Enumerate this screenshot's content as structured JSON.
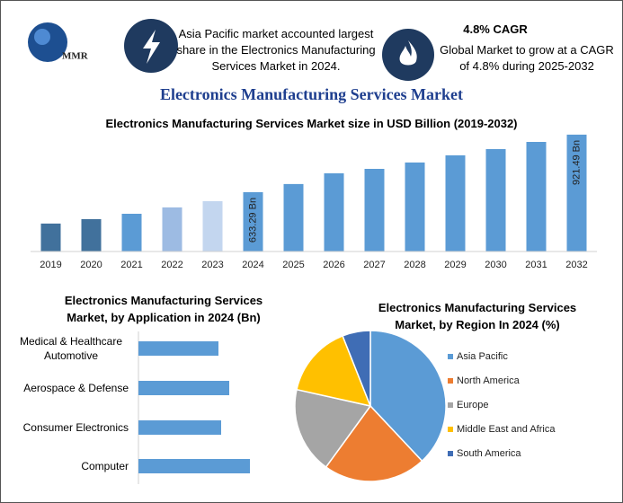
{
  "header": {
    "logo": "MMR",
    "fact1": "Asia Pacific market accounted largest share in the Electronics Manufacturing Services Market in 2024.",
    "fact2_title": "4.8% CAGR",
    "fact2": "Global Market to grow at a CAGR of 4.8% during 2025-2032",
    "title": "Electronics Manufacturing Services Market"
  },
  "chart_data": [
    {
      "type": "bar",
      "title": "Electronics Manufacturing Services Market size in USD Billion (2019-2032)",
      "categories": [
        "2019",
        "2020",
        "2021",
        "2022",
        "2023",
        "2024",
        "2025",
        "2026",
        "2027",
        "2028",
        "2029",
        "2030",
        "2031",
        "2032"
      ],
      "values": [
        476,
        498,
        525,
        557,
        588,
        633.29,
        674,
        728,
        750,
        782,
        818,
        849,
        885,
        921.49
      ],
      "value_labels": [
        null,
        null,
        null,
        null,
        null,
        "633.29 Bn",
        null,
        null,
        null,
        null,
        null,
        null,
        null,
        "921.49 Bn"
      ],
      "colors": [
        "#41719c",
        "#41719c",
        "#5b9bd5",
        "#9dbbe3",
        "#c3d6ef",
        "#5b9bd5",
        "#5b9bd5",
        "#5b9bd5",
        "#5b9bd5",
        "#5b9bd5",
        "#5b9bd5",
        "#5b9bd5",
        "#5b9bd5",
        "#5b9bd5"
      ],
      "ylim": [
        336,
        966
      ]
    },
    {
      "type": "bar",
      "orientation": "horizontal",
      "title": "Electronics Manufacturing Services Market, by Application in 2024 (Bn)",
      "categories": [
        "Medical & Healthcare Automotive",
        "Aerospace & Defense",
        "Consumer Electronics",
        "Computer"
      ],
      "values": [
        89,
        101,
        92,
        124
      ],
      "color": "#5b9bd5",
      "xlim": [
        0,
        150
      ]
    },
    {
      "type": "pie",
      "title": "Electronics Manufacturing Services Market, by Region In 2024 (%)",
      "categories": [
        "Asia Pacific",
        "North America",
        "Europe",
        "Middle East and Africa",
        "South America"
      ],
      "values": [
        38,
        22,
        18.5,
        15.5,
        6
      ],
      "colors": [
        "#5b9bd5",
        "#ed7d31",
        "#a5a5a5",
        "#ffc000",
        "#3f6db5"
      ]
    }
  ]
}
